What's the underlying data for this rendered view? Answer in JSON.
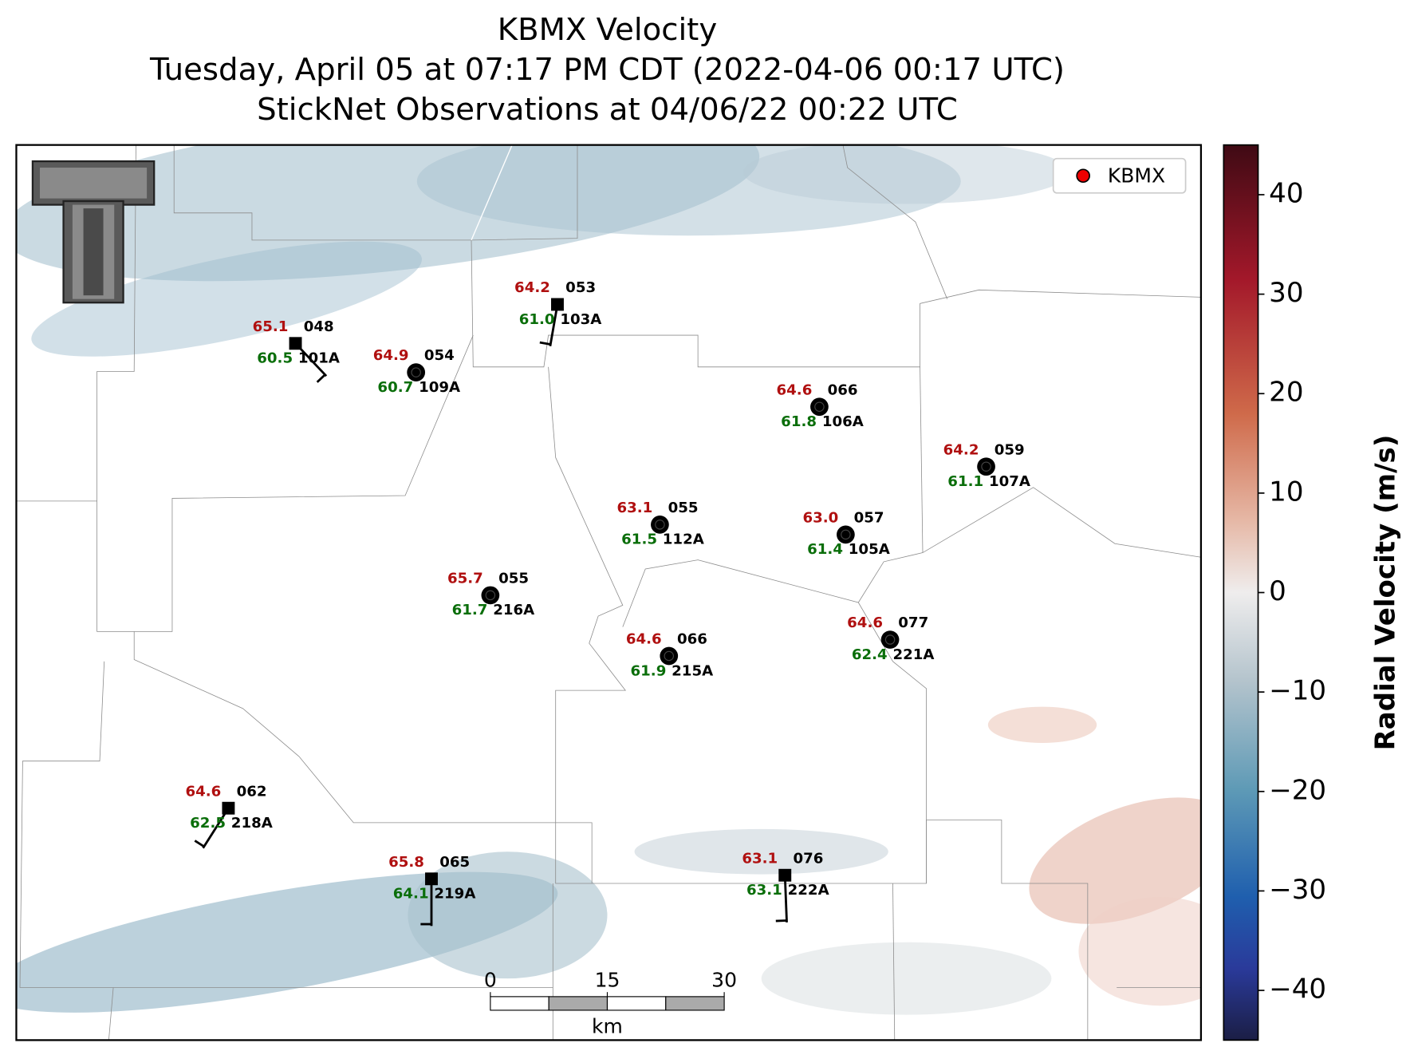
{
  "title": [
    "KBMX Velocity",
    "Tuesday, April 05 at 07:17 PM CDT (2022-04-06 00:17 UTC)",
    "StickNet Observations at 04/06/22 00:22 UTC"
  ],
  "legend": {
    "label": "KBMX"
  },
  "colorbar": {
    "label": "Radial Velocity (m/s)",
    "lim": [
      -45,
      45
    ],
    "ticks": [
      40,
      30,
      20,
      10,
      0,
      {
        "value": -10,
        "label": "−10"
      },
      {
        "value": -20,
        "label": "−20"
      },
      {
        "value": -30,
        "label": "−30"
      },
      {
        "value": -40,
        "label": "−40"
      }
    ]
  },
  "scale_bar": {
    "ticks": [
      0,
      15,
      30
    ],
    "unit": "km"
  },
  "stations": [
    {
      "id": "101A",
      "temperature": "65.1",
      "dewpoint": "60.5",
      "value": "048"
    },
    {
      "id": "109A",
      "temperature": "64.9",
      "dewpoint": "60.7",
      "value": "054"
    },
    {
      "id": "103A",
      "temperature": "64.2",
      "dewpoint": "61.0",
      "value": "053"
    },
    {
      "id": "106A",
      "temperature": "64.6",
      "dewpoint": "61.8",
      "value": "066"
    },
    {
      "id": "107A",
      "temperature": "64.2",
      "dewpoint": "61.1",
      "value": "059"
    },
    {
      "id": "112A",
      "temperature": "63.1",
      "dewpoint": "61.5",
      "value": "055"
    },
    {
      "id": "105A",
      "temperature": "63.0",
      "dewpoint": "61.4",
      "value": "057"
    },
    {
      "id": "216A",
      "temperature": "65.7",
      "dewpoint": "61.7",
      "value": "055"
    },
    {
      "id": "215A",
      "temperature": "64.6",
      "dewpoint": "61.9",
      "value": "066"
    },
    {
      "id": "221A",
      "temperature": "64.6",
      "dewpoint": "62.4",
      "value": "077"
    },
    {
      "id": "218A",
      "temperature": "64.6",
      "dewpoint": "62.5",
      "value": "062"
    },
    {
      "id": "219A",
      "temperature": "65.8",
      "dewpoint": "64.1",
      "value": "065"
    },
    {
      "id": "222A",
      "temperature": "63.1",
      "dewpoint": "63.1",
      "value": "076"
    }
  ]
}
